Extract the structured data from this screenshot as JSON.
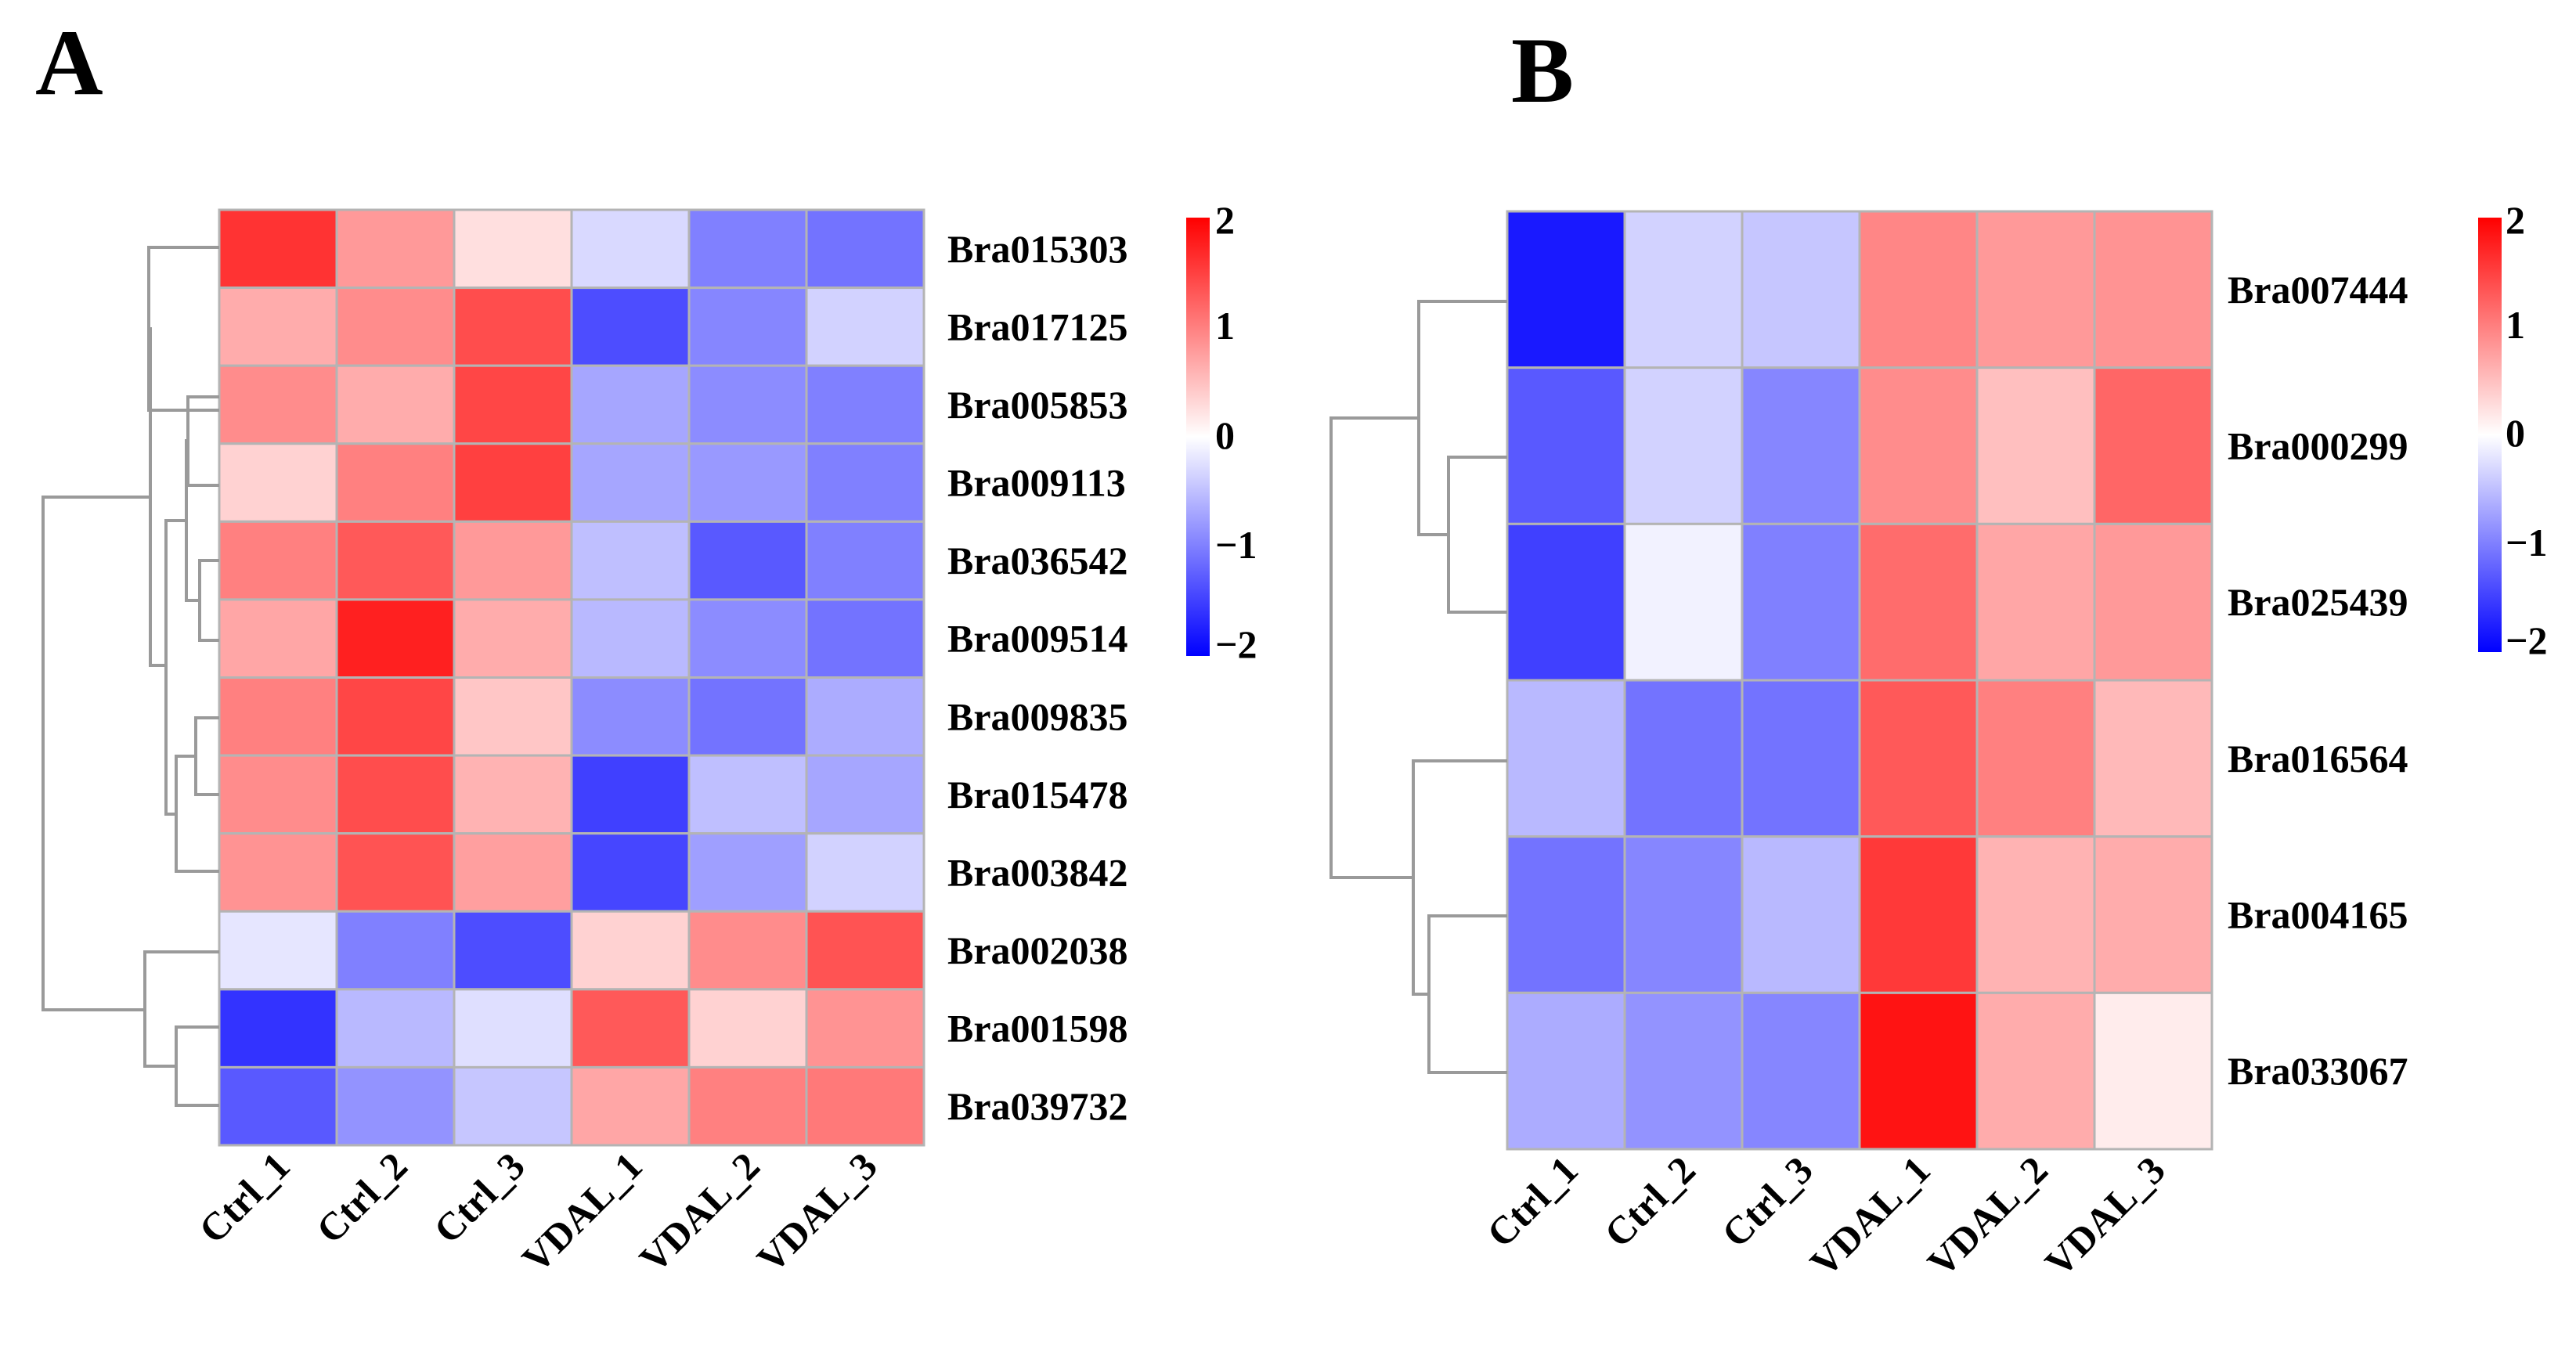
{
  "figure": {
    "panels": [
      "A",
      "B"
    ]
  },
  "colors": {
    "low": "#0000ff",
    "mid": "#ffffff",
    "high": "#ff0000",
    "grid": "#b4b4b4",
    "dendrogram": "#9a9a9a"
  },
  "chart_data": [
    {
      "type": "heatmap",
      "panel": "A",
      "columns": [
        "Ctrl_1",
        "Ctrl_2",
        "Ctrl_3",
        "VDAL_1",
        "VDAL_2",
        "VDAL_3"
      ],
      "rows": [
        "Bra015303",
        "Bra017125",
        "Bra005853",
        "Bra009113",
        "Bra036542",
        "Bra009514",
        "Bra009835",
        "Bra015478",
        "Bra003842",
        "Bra002038",
        "Bra001598",
        "Bra039732"
      ],
      "values": [
        [
          1.6,
          0.8,
          0.25,
          -0.3,
          -1.0,
          -1.1
        ],
        [
          0.65,
          0.9,
          1.4,
          -1.4,
          -0.95,
          -0.35
        ],
        [
          0.9,
          0.65,
          1.45,
          -0.7,
          -0.9,
          -1.0
        ],
        [
          0.35,
          1.0,
          1.5,
          -0.7,
          -0.8,
          -1.0
        ],
        [
          1.0,
          1.3,
          0.8,
          -0.5,
          -1.3,
          -1.0
        ],
        [
          0.7,
          1.75,
          0.65,
          -0.55,
          -0.9,
          -1.1
        ],
        [
          1.0,
          1.45,
          0.45,
          -0.9,
          -1.1,
          -0.65
        ],
        [
          0.9,
          1.4,
          0.6,
          -1.5,
          -0.5,
          -0.7
        ],
        [
          0.85,
          1.35,
          0.75,
          -1.45,
          -0.75,
          -0.35
        ],
        [
          -0.2,
          -1.0,
          -1.4,
          0.35,
          0.9,
          1.35
        ],
        [
          -1.6,
          -0.55,
          -0.25,
          1.3,
          0.35,
          0.85
        ],
        [
          -1.3,
          -0.85,
          -0.45,
          0.7,
          1.0,
          1.05
        ]
      ],
      "legend": {
        "min": -2,
        "max": 2,
        "ticks": [
          "2",
          "1",
          "0",
          "−1",
          "−2"
        ]
      }
    },
    {
      "type": "heatmap",
      "panel": "B",
      "columns": [
        "Ctrl_1",
        "Ctrl_2",
        "Ctrl_3",
        "VDAL_1",
        "VDAL_2",
        "VDAL_3"
      ],
      "rows": [
        "Bra007444",
        "Bra000299",
        "Bra025439",
        "Bra016564",
        "Bra004165",
        "Bra033067"
      ],
      "values": [
        [
          -1.8,
          -0.35,
          -0.45,
          0.95,
          0.8,
          0.85
        ],
        [
          -1.3,
          -0.35,
          -0.95,
          0.9,
          0.5,
          1.2
        ],
        [
          -1.5,
          -0.1,
          -1.0,
          1.15,
          0.7,
          0.8
        ],
        [
          -0.55,
          -1.1,
          -1.1,
          1.3,
          1.0,
          0.55
        ],
        [
          -1.1,
          -0.95,
          -0.55,
          1.55,
          0.6,
          0.65
        ],
        [
          -0.65,
          -0.85,
          -0.95,
          1.85,
          0.65,
          0.15
        ]
      ],
      "legend": {
        "min": -2,
        "max": 2,
        "ticks": [
          "2",
          "1",
          "0",
          "−1",
          "−2"
        ]
      }
    }
  ]
}
